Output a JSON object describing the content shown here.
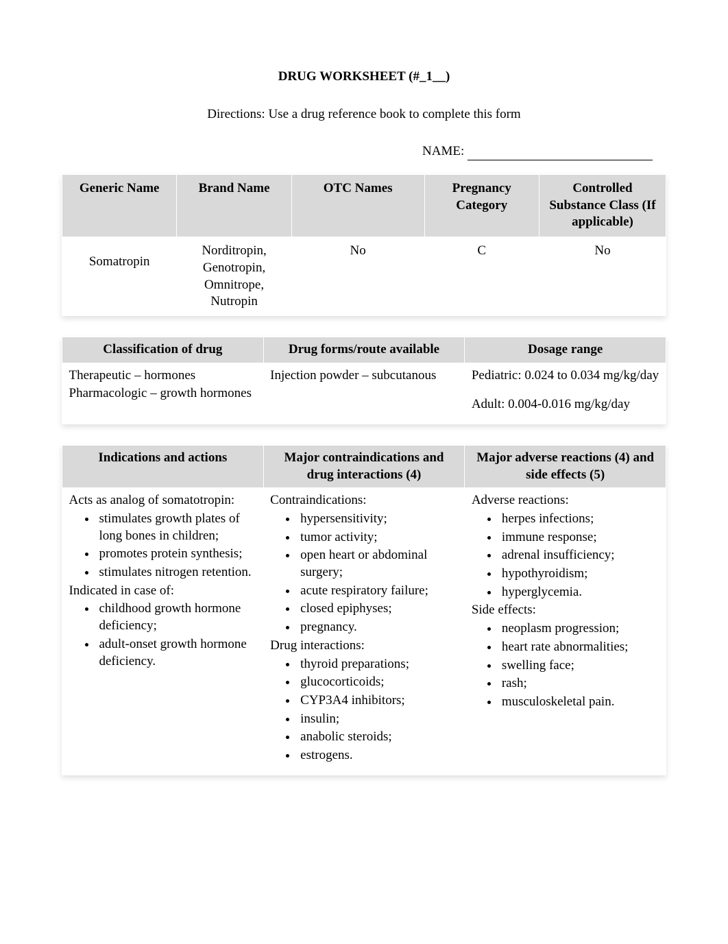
{
  "title": "DRUG WORKSHEET (#_1__)",
  "directions": "Directions: Use a drug reference book to complete this form",
  "nameLabel": "NAME:",
  "table1": {
    "headers": {
      "generic": "Generic Name",
      "brand": "Brand Name",
      "otc": "OTC Names",
      "pregnancy": "Pregnancy Category",
      "controlled": "Controlled Substance Class (If applicable)"
    },
    "row": {
      "generic": "Somatropin",
      "brand": "Norditropin, Genotropin, Omnitrope, Nutropin",
      "otc": "No",
      "pregnancy": "C",
      "controlled": "No"
    },
    "widths": {
      "generic": "19%",
      "brand": "19%",
      "otc": "22%",
      "pregnancy": "19%",
      "controlled": "21%"
    }
  },
  "table2": {
    "headers": {
      "classification": "Classification of drug",
      "forms": "Drug forms/route available",
      "dosage": "Dosage range"
    },
    "classification": {
      "line1": "Therapeutic – hormones",
      "line2": "Pharmacologic – growth hormones"
    },
    "forms": "Injection powder – subcutanous",
    "dosage": {
      "pediatric": "Pediatric: 0.024 to 0.034 mg/kg/day",
      "adult": "Adult: 0.004-0.016 mg/kg/day"
    }
  },
  "table3": {
    "headers": {
      "indications": "Indications and actions",
      "contraindications": "Major contraindications and drug interactions (4)",
      "reactions": "Major adverse reactions (4) and side effects (5)"
    },
    "indications": {
      "intro": "Acts as analog of somatotropin:",
      "actionItems": [
        "stimulates growth plates of long bones in children;",
        "promotes protein synthesis;",
        "stimulates nitrogen retention."
      ],
      "indicatedHead": "Indicated in case of:",
      "indicatedItems": [
        "childhood growth hormone deficiency;",
        "adult-onset growth hormone deficiency."
      ]
    },
    "contraindications": {
      "contraHead": "Contraindications:",
      "contraItems": [
        "hypersensitivity;",
        "tumor activity;",
        "open heart or abdominal surgery;",
        "acute respiratory failure;",
        "closed epiphyses;",
        "pregnancy."
      ],
      "drugHead": "Drug interactions:",
      "drugItems": [
        "thyroid preparations;",
        "glucocorticoids;",
        "CYP3A4 inhibitors;",
        "insulin;",
        "anabolic steroids;",
        "estrogens."
      ]
    },
    "reactions": {
      "adverseHead": "Adverse reactions:",
      "adverseItems": [
        "herpes infections;",
        "immune response;",
        "adrenal insufficiency;",
        "hypothyroidism;",
        "hyperglycemia."
      ],
      "sideHead": "Side effects:",
      "sideItems": [
        "neoplasm progression;",
        "heart rate abnormalities;",
        "swelling face;",
        "rash;",
        "musculoskeletal pain."
      ]
    }
  },
  "colors": {
    "headerBg": "#d9d9d9",
    "text": "#000000",
    "pageBg": "#ffffff"
  },
  "typography": {
    "fontFamily": "Times New Roman",
    "fontSize": 19
  }
}
